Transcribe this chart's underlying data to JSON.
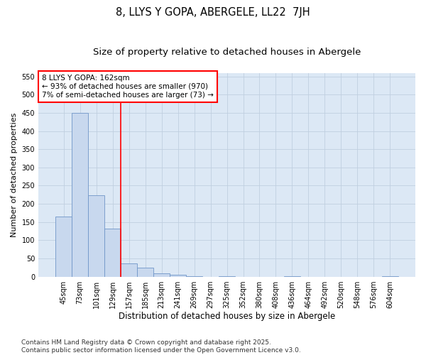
{
  "title": "8, LLYS Y GOPA, ABERGELE, LL22  7JH",
  "subtitle": "Size of property relative to detached houses in Abergele",
  "xlabel": "Distribution of detached houses by size in Abergele",
  "ylabel": "Number of detached properties",
  "categories": [
    "45sqm",
    "73sqm",
    "101sqm",
    "129sqm",
    "157sqm",
    "185sqm",
    "213sqm",
    "241sqm",
    "269sqm",
    "297sqm",
    "325sqm",
    "352sqm",
    "380sqm",
    "408sqm",
    "436sqm",
    "464sqm",
    "492sqm",
    "520sqm",
    "548sqm",
    "576sqm",
    "604sqm"
  ],
  "values": [
    165,
    450,
    223,
    132,
    37,
    25,
    10,
    5,
    2,
    0,
    2,
    0,
    0,
    0,
    2,
    0,
    0,
    0,
    0,
    0,
    2
  ],
  "bar_color": "#c8d8ee",
  "bar_edge_color": "#7096c8",
  "vline_x_index": 3.5,
  "vline_color": "red",
  "annotation_line1": "8 LLYS Y GOPA: 162sqm",
  "annotation_line2": "← 93% of detached houses are smaller (970)",
  "annotation_line3": "7% of semi-detached houses are larger (73) →",
  "ylim_max": 560,
  "yticks": [
    0,
    50,
    100,
    150,
    200,
    250,
    300,
    350,
    400,
    450,
    500,
    550
  ],
  "footer_text": "Contains HM Land Registry data © Crown copyright and database right 2025.\nContains public sector information licensed under the Open Government Licence v3.0.",
  "grid_color": "#c0cfe0",
  "background_color": "#dce8f5",
  "title_fontsize": 10.5,
  "subtitle_fontsize": 9.5,
  "ylabel_fontsize": 8,
  "xlabel_fontsize": 8.5,
  "tick_fontsize": 7,
  "annotation_fontsize": 7.5,
  "footer_fontsize": 6.5
}
